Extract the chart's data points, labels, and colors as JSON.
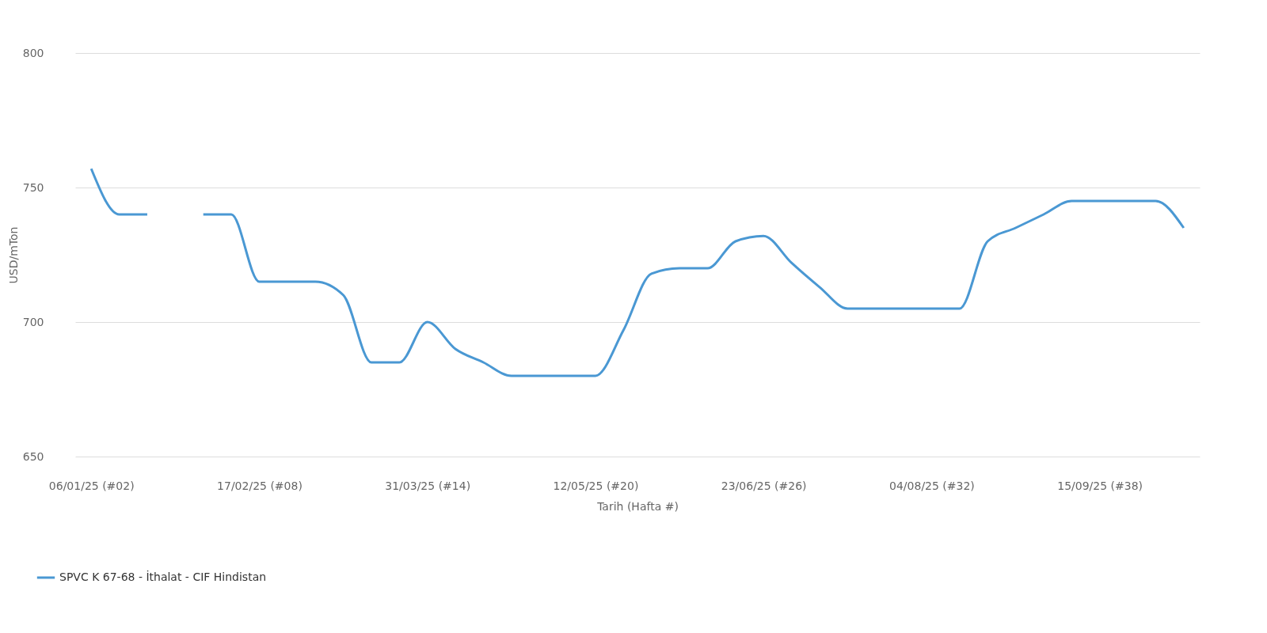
{
  "chart_data": {
    "type": "line",
    "xlabel": "Tarih (Hafta #)",
    "ylabel": "USD/mTon",
    "x": [
      "2025-01-06",
      "2025-01-13",
      "2025-01-20",
      "2025-01-27",
      "2025-02-03",
      "2025-02-10",
      "2025-02-17",
      "2025-02-24",
      "2025-03-03",
      "2025-03-10",
      "2025-03-17",
      "2025-03-24",
      "2025-03-31",
      "2025-04-07",
      "2025-04-14",
      "2025-04-21",
      "2025-04-28",
      "2025-05-05",
      "2025-05-12",
      "2025-05-19",
      "2025-05-26",
      "2025-06-02",
      "2025-06-09",
      "2025-06-16",
      "2025-06-23",
      "2025-06-30",
      "2025-07-07",
      "2025-07-14",
      "2025-07-21",
      "2025-07-28",
      "2025-08-04",
      "2025-08-11",
      "2025-08-18",
      "2025-08-25",
      "2025-09-01",
      "2025-09-08",
      "2025-09-15",
      "2025-09-22",
      "2025-09-29",
      "2025-10-06"
    ],
    "series": [
      {
        "name": "SPVC K 67-68 - İthalat - CIF Hindistan",
        "color": "#4a98d3",
        "values": [
          757,
          740,
          740,
          null,
          740,
          740,
          715,
          715,
          715,
          710,
          685,
          685,
          700,
          690,
          685,
          680,
          680,
          680,
          680,
          697,
          718,
          720,
          720,
          730,
          732,
          722,
          713,
          705,
          705,
          705,
          705,
          705,
          730,
          735,
          740,
          745,
          745,
          745,
          745,
          735
        ]
      }
    ],
    "xlim": [
      "2025-01-02",
      "2025-10-10"
    ],
    "xticks": [
      {
        "value": "2025-01-06",
        "label": "06/01/25 (#02)"
      },
      {
        "value": "2025-02-17",
        "label": "17/02/25 (#08)"
      },
      {
        "value": "2025-03-31",
        "label": "31/03/25 (#14)"
      },
      {
        "value": "2025-05-12",
        "label": "12/05/25 (#20)"
      },
      {
        "value": "2025-06-23",
        "label": "23/06/25 (#26)"
      },
      {
        "value": "2025-08-04",
        "label": "04/08/25 (#32)"
      },
      {
        "value": "2025-09-15",
        "label": "15/09/25 (#38)"
      }
    ],
    "ylim": [
      650,
      800
    ],
    "yticks": [
      650,
      700,
      750,
      800
    ],
    "grid": "y",
    "legend": "bottom left",
    "marker": "none",
    "line_style": "solid"
  }
}
